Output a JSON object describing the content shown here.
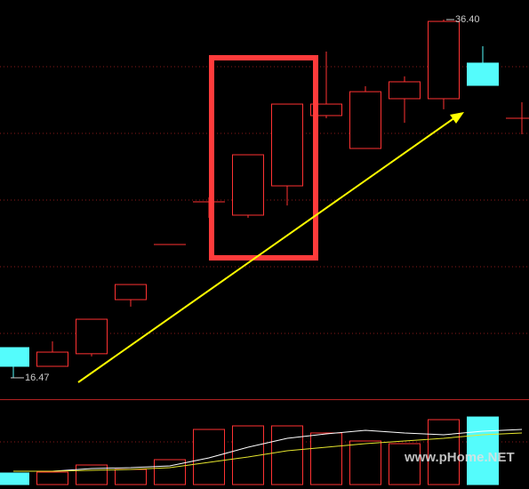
{
  "chart_data": {
    "type": "candlestick",
    "up_color": "#ff3232",
    "down_color": "#54fcfc",
    "ylim": [
      15.28,
      37.49
    ],
    "open": [
      18.15,
      17.11,
      17.81,
      20.82,
      23.89,
      26.26,
      25.52,
      27.15,
      31.06,
      29.23,
      32.0,
      32.0,
      33.98,
      30.91
    ],
    "high": [
      18.15,
      18.5,
      19.73,
      21.66,
      23.89,
      26.51,
      28.88,
      31.7,
      34.62,
      32.69,
      33.24,
      36.4,
      34.92,
      31.8
    ],
    "low": [
      16.47,
      17.11,
      17.66,
      20.43,
      23.89,
      25.37,
      25.37,
      26.06,
      30.91,
      29.23,
      30.66,
      31.41,
      32.74,
      30.02
    ],
    "close": [
      17.11,
      17.9,
      19.73,
      21.66,
      23.89,
      26.26,
      28.88,
      31.7,
      31.7,
      32.39,
      32.94,
      36.3,
      32.74,
      30.91
    ],
    "max_label": {
      "value": 36.4,
      "label": "36.40"
    },
    "min_label": {
      "value": 16.47,
      "label": "16.47"
    },
    "volume": {
      "ylim": [
        0,
        95
      ],
      "values": [
        13,
        14,
        22,
        17,
        28,
        62,
        66,
        66,
        58,
        49,
        46,
        73,
        76,
        null
      ],
      "ma_fast": {
        "color": "#ffffff",
        "values": [
          15,
          15,
          18,
          19,
          21,
          30,
          42,
          52,
          57,
          61,
          58,
          56,
          60,
          62
        ]
      },
      "ma_slow": {
        "color": "#e6e62e",
        "values": [
          15,
          15,
          16,
          17,
          19,
          25,
          31,
          38,
          42,
          46,
          49,
          52,
          56,
          58
        ]
      }
    },
    "watermark": "www.pHome.NET"
  }
}
